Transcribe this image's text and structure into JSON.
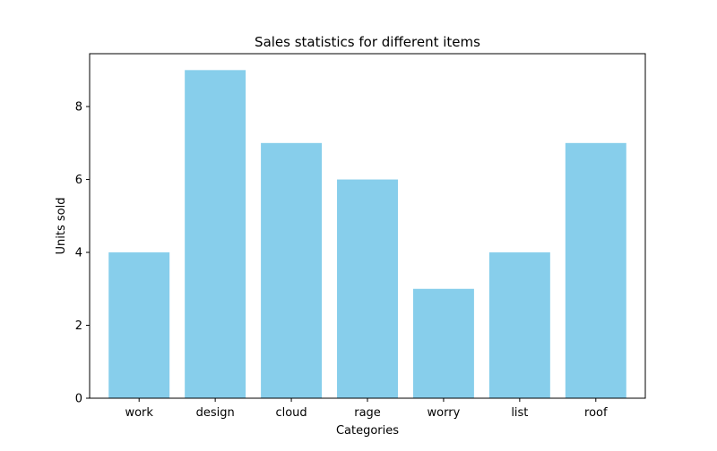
{
  "chart_data": {
    "type": "bar",
    "title": "Sales statistics for different items",
    "xlabel": "Categories",
    "ylabel": "Units sold",
    "categories": [
      "work",
      "design",
      "cloud",
      "rage",
      "worry",
      "list",
      "roof"
    ],
    "values": [
      4,
      9,
      7,
      6,
      3,
      4,
      7
    ],
    "ylim": [
      0,
      9.45
    ],
    "yticks": [
      0,
      2,
      4,
      6,
      8
    ],
    "bar_color": "#87ceeb",
    "grid": false,
    "legend": "none"
  }
}
